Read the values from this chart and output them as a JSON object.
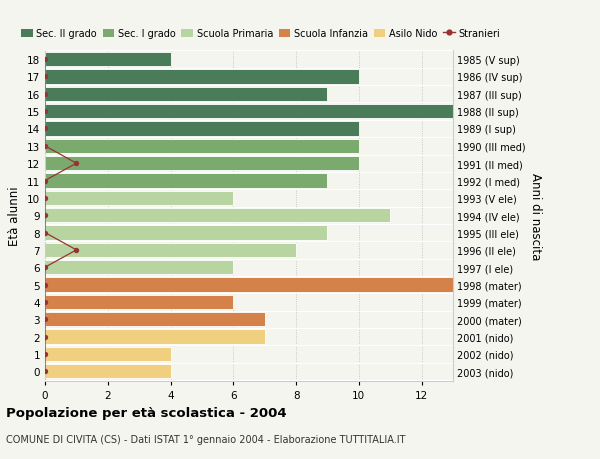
{
  "ages": [
    18,
    17,
    16,
    15,
    14,
    13,
    12,
    11,
    10,
    9,
    8,
    7,
    6,
    5,
    4,
    3,
    2,
    1,
    0
  ],
  "years": [
    "1985 (V sup)",
    "1986 (IV sup)",
    "1987 (III sup)",
    "1988 (II sup)",
    "1989 (I sup)",
    "1990 (III med)",
    "1991 (II med)",
    "1992 (I med)",
    "1993 (V ele)",
    "1994 (IV ele)",
    "1995 (III ele)",
    "1996 (II ele)",
    "1997 (I ele)",
    "1998 (mater)",
    "1999 (mater)",
    "2000 (mater)",
    "2001 (nido)",
    "2002 (nido)",
    "2003 (nido)"
  ],
  "values": [
    4,
    10,
    9,
    13,
    10,
    10,
    10,
    9,
    6,
    11,
    9,
    8,
    6,
    13,
    6,
    7,
    7,
    4,
    4
  ],
  "stranieri": [
    0,
    0,
    0,
    0,
    0,
    0,
    1,
    0,
    0,
    0,
    0,
    1,
    0,
    0,
    0,
    0,
    0,
    0,
    0
  ],
  "bar_colors_by_age": {
    "18": "#4a7c59",
    "17": "#4a7c59",
    "16": "#4a7c59",
    "15": "#4a7c59",
    "14": "#4a7c59",
    "13": "#7aaa6e",
    "12": "#7aaa6e",
    "11": "#7aaa6e",
    "10": "#b8d4a0",
    "9": "#b8d4a0",
    "8": "#b8d4a0",
    "7": "#b8d4a0",
    "6": "#b8d4a0",
    "5": "#d4824a",
    "4": "#d4824a",
    "3": "#d4824a",
    "2": "#f0d080",
    "1": "#f0d080",
    "0": "#f0d080"
  },
  "stranieri_line_color": "#993333",
  "stranieri_dot_color": "#993333",
  "xlim": [
    0,
    13
  ],
  "xticks": [
    0,
    2,
    4,
    6,
    8,
    10,
    12
  ],
  "ylim": [
    -0.55,
    18.55
  ],
  "ylabel": "Età alunni",
  "right_ylabel": "Anni di nascita",
  "title": "Popolazione per età scolastica - 2004",
  "subtitle": "COMUNE DI CIVITA (CS) - Dati ISTAT 1° gennaio 2004 - Elaborazione TUTTITALIA.IT",
  "legend_items": [
    {
      "label": "Sec. II grado",
      "color": "#4a7c59",
      "type": "patch"
    },
    {
      "label": "Sec. I grado",
      "color": "#7aaa6e",
      "type": "patch"
    },
    {
      "label": "Scuola Primaria",
      "color": "#b8d4a0",
      "type": "patch"
    },
    {
      "label": "Scuola Infanzia",
      "color": "#d4824a",
      "type": "patch"
    },
    {
      "label": "Asilo Nido",
      "color": "#f0d080",
      "type": "patch"
    },
    {
      "label": "Stranieri",
      "color": "#993333",
      "type": "line"
    }
  ],
  "background_color": "#f5f5f0",
  "bar_height": 0.82
}
